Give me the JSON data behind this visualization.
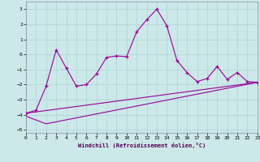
{
  "xlabel": "Windchill (Refroidissement éolien,°C)",
  "xlim": [
    0,
    23
  ],
  "ylim": [
    -5.2,
    3.5
  ],
  "yticks": [
    -5,
    -4,
    -3,
    -2,
    -1,
    0,
    1,
    2,
    3
  ],
  "xticks": [
    0,
    1,
    2,
    3,
    4,
    5,
    6,
    7,
    8,
    9,
    10,
    11,
    12,
    13,
    14,
    15,
    16,
    17,
    18,
    19,
    20,
    21,
    22,
    23
  ],
  "bg_color": "#cce8e8",
  "line_color": "#990099",
  "grid_color": "#aad4d4",
  "line1_x": [
    0,
    1,
    2,
    3,
    4,
    5,
    6,
    7,
    8,
    9,
    10,
    11,
    12,
    13,
    14,
    15,
    16,
    17,
    18,
    19,
    20,
    21,
    22,
    23
  ],
  "line1_y": [
    -3.9,
    -3.7,
    -2.1,
    0.3,
    -0.9,
    -2.1,
    -2.0,
    -1.3,
    -0.2,
    -0.1,
    -0.15,
    1.5,
    2.3,
    3.0,
    1.9,
    -0.4,
    -1.2,
    -1.8,
    -1.6,
    -0.8,
    -1.65,
    -1.2,
    -1.8,
    -1.85
  ],
  "line2_x": [
    0,
    23
  ],
  "line2_y": [
    -3.9,
    -1.85
  ],
  "line3_x": [
    0,
    2,
    23
  ],
  "line3_y": [
    -4.1,
    -4.6,
    -1.85
  ]
}
